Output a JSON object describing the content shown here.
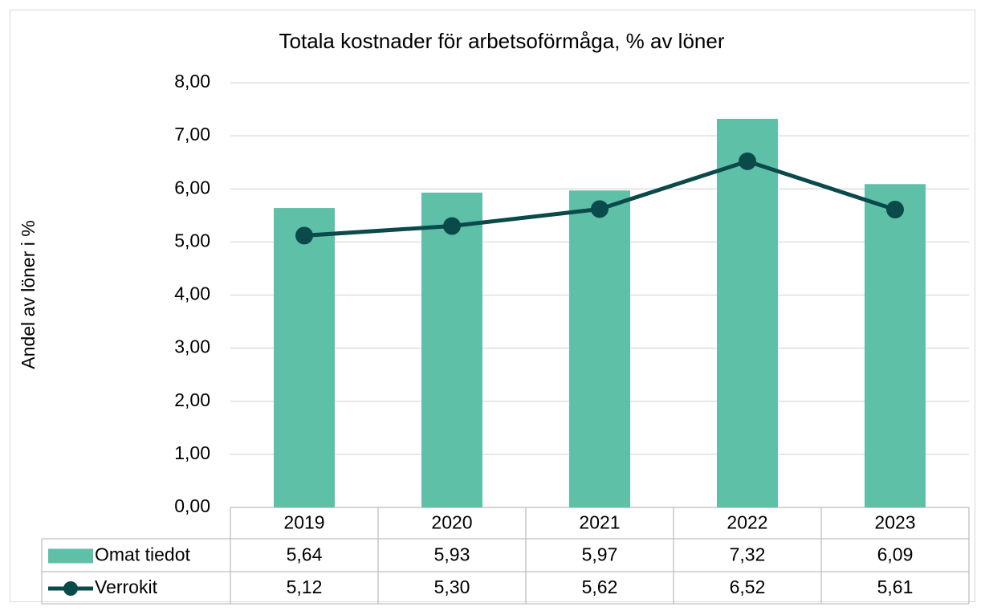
{
  "chart_data": {
    "type": "bar",
    "title": "Totala kostnader för arbetsoförmåga, % av löner",
    "y_label": "Andel av löner i %",
    "categories": [
      "2019",
      "2020",
      "2021",
      "2022",
      "2023"
    ],
    "series": [
      {
        "name": "Omat tiedot",
        "type": "bar",
        "color": "#5fc0a8",
        "values": [
          5.64,
          5.93,
          5.97,
          7.32,
          6.09
        ],
        "value_labels": [
          "5,64",
          "5,93",
          "5,97",
          "7,32",
          "6,09"
        ]
      },
      {
        "name": "Verrokit",
        "type": "line",
        "color": "#0b4a4a",
        "values": [
          5.12,
          5.3,
          5.62,
          6.52,
          5.61
        ],
        "value_labels": [
          "5,12",
          "5,30",
          "5,62",
          "6,52",
          "5,61"
        ]
      }
    ],
    "ylim": [
      0,
      8
    ],
    "yticks": [
      {
        "value": 0,
        "label": "0,00"
      },
      {
        "value": 1,
        "label": "1,00"
      },
      {
        "value": 2,
        "label": "2,00"
      },
      {
        "value": 3,
        "label": "3,00"
      },
      {
        "value": 4,
        "label": "4,00"
      },
      {
        "value": 5,
        "label": "5,00"
      },
      {
        "value": 6,
        "label": "6,00"
      },
      {
        "value": 7,
        "label": "7,00"
      },
      {
        "value": 8,
        "label": "8,00"
      }
    ],
    "grid": true
  }
}
